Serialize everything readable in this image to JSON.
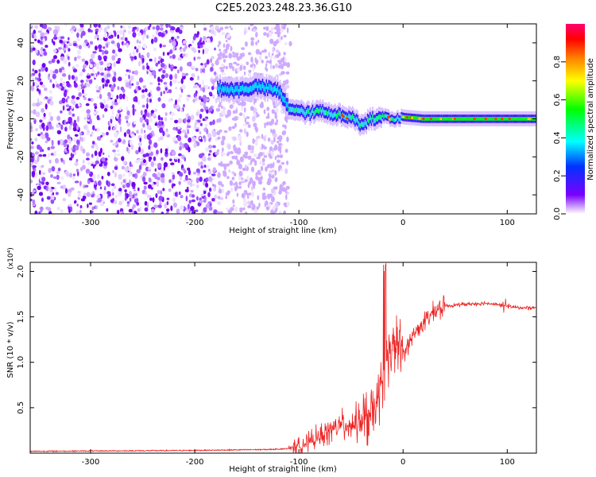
{
  "title": "C2E5.2023.248.23.36.G10",
  "chart_data": [
    {
      "type": "heatmap",
      "xlabel": "Height of straight line (km)",
      "ylabel": "Frequency (Hz)",
      "xlim": [
        -358,
        128
      ],
      "ylim": [
        -50,
        50
      ],
      "xticks": [
        -300,
        -200,
        -100,
        0,
        100
      ],
      "yticks": [
        -40,
        -20,
        0,
        20,
        40
      ],
      "colorbar": {
        "label": "Normalized spectral amplitude",
        "range": [
          0,
          1
        ],
        "ticks": [
          "0.0",
          "0.2",
          "0.4",
          "0.6",
          "0.8"
        ],
        "colors": [
          "#ffffff",
          "#7a00ff",
          "#0033ff",
          "#00ffff",
          "#00ff00",
          "#ffff00",
          "#ff8000",
          "#ff0000",
          "#ff0070"
        ]
      },
      "trace": {
        "x": [
          -175,
          -160,
          -150,
          -140,
          -130,
          -120,
          -110,
          -100,
          -90,
          -80,
          -70,
          -60,
          -50,
          -40,
          -30,
          -20,
          -10,
          0,
          20,
          50,
          80,
          100,
          128
        ],
        "y": [
          16,
          15,
          16,
          17,
          16,
          15,
          6,
          4,
          3,
          4,
          3,
          2,
          1,
          -3,
          0,
          1,
          0,
          1,
          0,
          0,
          0,
          0,
          0
        ]
      }
    },
    {
      "type": "line",
      "xlabel": "Height of straight line (km)",
      "ylabel": "SNR (10 * v/v)",
      "scale_label": "(x10⁴)",
      "xlim": [
        -358,
        128
      ],
      "ylim": [
        0,
        2.1
      ],
      "xticks": [
        -300,
        -200,
        -100,
        0,
        100
      ],
      "yticks": [
        0.5,
        1.0,
        1.5,
        2.0
      ],
      "color": "#ee2222",
      "series": [
        {
          "x": [
            -358,
            -200,
            -130,
            -110,
            -100,
            -90,
            -80,
            -70,
            -60,
            -50,
            -40,
            -30,
            -25,
            -20,
            -15,
            -10,
            -5,
            0,
            10,
            20,
            30,
            40,
            60,
            80,
            100,
            110,
            128
          ],
          "y": [
            0.02,
            0.03,
            0.04,
            0.05,
            0.08,
            0.12,
            0.18,
            0.25,
            0.3,
            0.32,
            0.35,
            0.4,
            0.55,
            0.8,
            1.1,
            1.15,
            1.2,
            1.1,
            1.3,
            1.45,
            1.55,
            1.62,
            1.64,
            1.65,
            1.62,
            1.6,
            1.6
          ]
        }
      ]
    }
  ]
}
